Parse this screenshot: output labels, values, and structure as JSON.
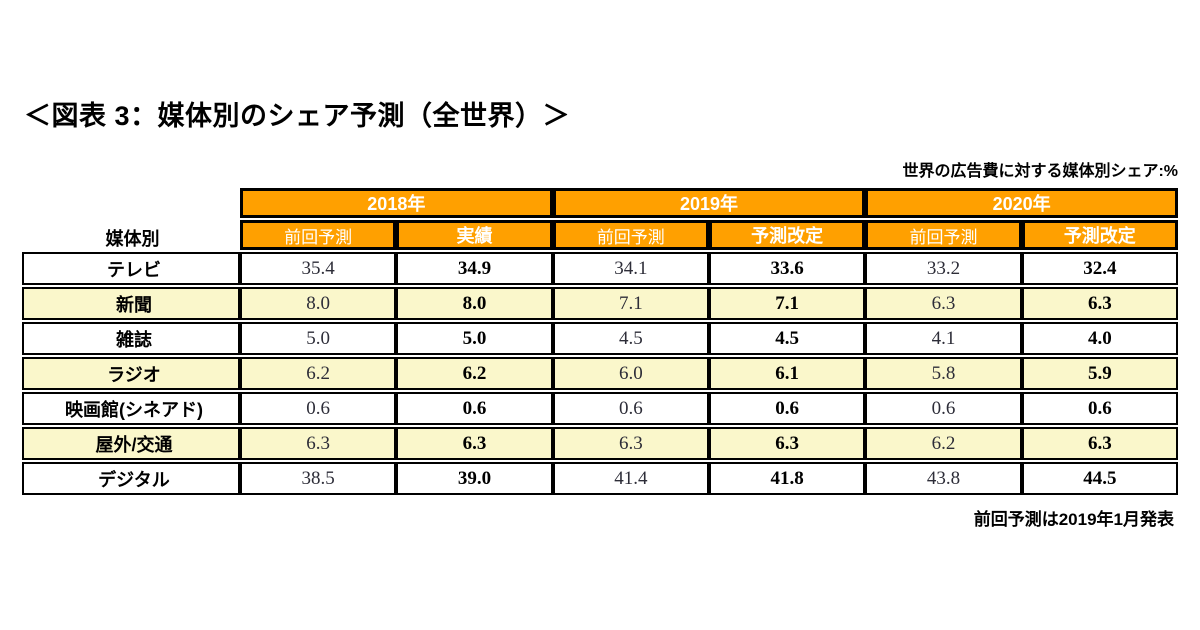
{
  "colors": {
    "header_bg": "#FFA000",
    "header_text": "#FFFFFF",
    "row_alt_bg": "#FAF7CB",
    "border": "#000000"
  },
  "chart_data": {
    "type": "table",
    "title": "＜図表 3：媒体別のシェア予測（全世界）＞",
    "unit_note": "世界の広告費に対する媒体別シェア:%",
    "footnote": "前回予測は2019年1月発表",
    "row_header_label": "媒体別",
    "year_groups": [
      {
        "label": "2018年",
        "columns": [
          "前回予測",
          "実績"
        ]
      },
      {
        "label": "2019年",
        "columns": [
          "前回予測",
          "予測改定"
        ]
      },
      {
        "label": "2020年",
        "columns": [
          "前回予測",
          "予測改定"
        ]
      }
    ],
    "rows": [
      {
        "label": "テレビ",
        "values": [
          "35.4",
          "34.9",
          "34.1",
          "33.6",
          "33.2",
          "32.4"
        ]
      },
      {
        "label": "新聞",
        "values": [
          "8.0",
          "8.0",
          "7.1",
          "7.1",
          "6.3",
          "6.3"
        ]
      },
      {
        "label": "雑誌",
        "values": [
          "5.0",
          "5.0",
          "4.5",
          "4.5",
          "4.1",
          "4.0"
        ]
      },
      {
        "label": "ラジオ",
        "values": [
          "6.2",
          "6.2",
          "6.0",
          "6.1",
          "5.8",
          "5.9"
        ]
      },
      {
        "label": "映画館(シネアド)",
        "values": [
          "0.6",
          "0.6",
          "0.6",
          "0.6",
          "0.6",
          "0.6"
        ]
      },
      {
        "label": "屋外/交通",
        "values": [
          "6.3",
          "6.3",
          "6.3",
          "6.3",
          "6.2",
          "6.3"
        ]
      },
      {
        "label": "デジタル",
        "values": [
          "38.5",
          "39.0",
          "41.4",
          "41.8",
          "43.8",
          "44.5"
        ]
      }
    ]
  }
}
